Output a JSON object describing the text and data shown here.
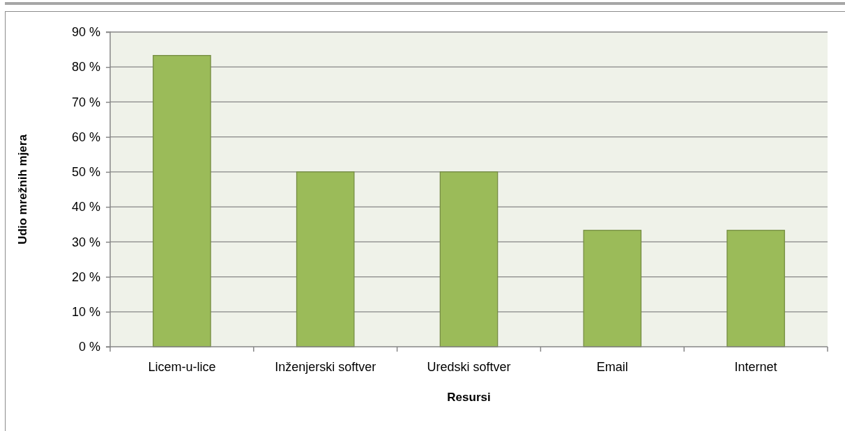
{
  "chart_data": {
    "type": "bar",
    "xlabel": "Resursi",
    "ylabel": "Udio mrežnih mjera",
    "categories": [
      "Licem-u-lice",
      "Inženjerski softver",
      "Uredski softver",
      "Email",
      "Internet"
    ],
    "values": [
      83.3,
      50,
      50,
      33.3,
      33.3
    ],
    "color": "#9bbb59",
    "ylim": [
      0,
      90
    ],
    "yticks": [
      {
        "value": 0,
        "label": "0 %"
      },
      {
        "value": 10,
        "label": "10 %"
      },
      {
        "value": 20,
        "label": "20 %"
      },
      {
        "value": 30,
        "label": "30 %"
      },
      {
        "value": 40,
        "label": "40 %"
      },
      {
        "value": 50,
        "label": "50 %"
      },
      {
        "value": 60,
        "label": "60 %"
      },
      {
        "value": 70,
        "label": "70 %"
      },
      {
        "value": 80,
        "label": "80 %"
      },
      {
        "value": 90,
        "label": "90 %"
      }
    ],
    "grid": "y"
  }
}
